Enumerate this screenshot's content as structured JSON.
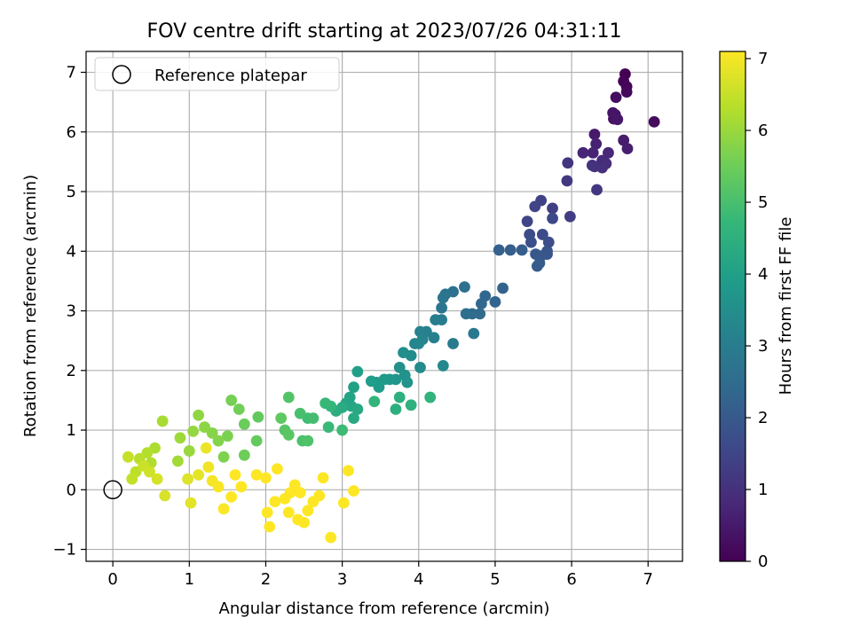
{
  "chart_data": {
    "type": "scatter",
    "title": "FOV centre drift starting at 2023/07/26 04:31:11",
    "xlabel": "Angular distance from reference (arcmin)",
    "ylabel": "Rotation from reference (arcmin)",
    "xlim": [
      -0.35,
      7.45
    ],
    "ylim": [
      -1.2,
      7.35
    ],
    "x_ticks": [
      "0",
      "1",
      "2",
      "3",
      "4",
      "5",
      "6",
      "7"
    ],
    "y_ticks": [
      "−1",
      "0",
      "1",
      "2",
      "3",
      "4",
      "5",
      "6",
      "7"
    ],
    "grid": true,
    "legend": {
      "placement": "top-left",
      "entries": [
        "Reference platepar"
      ]
    },
    "reference_point": {
      "x": 0,
      "y": 0,
      "marker": "open-circle"
    },
    "colorbar": {
      "label": "Hours from first FF file",
      "colormap": "viridis",
      "range": [
        0,
        7.1
      ],
      "ticks": [
        "0",
        "1",
        "2",
        "3",
        "4",
        "5",
        "6",
        "7"
      ]
    },
    "colormap_stops": [
      "#440154",
      "#482878",
      "#3e4989",
      "#31688e",
      "#26828e",
      "#1f9e89",
      "#35b779",
      "#6ece58",
      "#b5de2b",
      "#fde725"
    ],
    "series": [
      {
        "points": [
          [
            6.7,
            6.97,
            0.0
          ],
          [
            6.68,
            6.85,
            0.05
          ],
          [
            6.72,
            6.76,
            0.1
          ],
          [
            6.72,
            6.67,
            0.15
          ],
          [
            7.08,
            6.17,
            0.2
          ],
          [
            6.58,
            6.58,
            0.25
          ],
          [
            6.57,
            6.29,
            0.3
          ],
          [
            6.55,
            6.22,
            0.35
          ],
          [
            6.54,
            6.32,
            0.4
          ],
          [
            6.6,
            6.21,
            0.45
          ],
          [
            6.3,
            5.96,
            0.5
          ],
          [
            6.68,
            5.86,
            0.55
          ],
          [
            6.73,
            5.72,
            0.6
          ],
          [
            6.32,
            5.8,
            0.65
          ],
          [
            6.28,
            5.65,
            0.7
          ],
          [
            6.15,
            5.65,
            0.75
          ],
          [
            6.48,
            5.65,
            0.8
          ],
          [
            6.4,
            5.52,
            0.85
          ],
          [
            6.45,
            5.47,
            0.9
          ],
          [
            6.4,
            5.4,
            0.95
          ],
          [
            6.3,
            5.42,
            1.0
          ],
          [
            6.27,
            5.44,
            1.05
          ],
          [
            5.95,
            5.48,
            1.1
          ],
          [
            6.33,
            5.03,
            1.15
          ],
          [
            5.94,
            5.18,
            1.2
          ],
          [
            5.98,
            4.58,
            1.3
          ],
          [
            5.75,
            4.72,
            1.35
          ],
          [
            5.6,
            4.85,
            1.4
          ],
          [
            5.52,
            4.75,
            1.45
          ],
          [
            5.42,
            4.5,
            1.5
          ],
          [
            5.75,
            4.55,
            1.55
          ],
          [
            5.62,
            4.28,
            1.6
          ],
          [
            5.45,
            4.28,
            1.65
          ],
          [
            5.7,
            4.15,
            1.7
          ],
          [
            5.47,
            4.15,
            1.75
          ],
          [
            5.68,
            4.0,
            1.8
          ],
          [
            5.68,
            3.95,
            1.85
          ],
          [
            5.6,
            3.92,
            1.9
          ],
          [
            5.53,
            3.95,
            1.95
          ],
          [
            5.58,
            3.8,
            2.0
          ],
          [
            5.55,
            3.75,
            2.05
          ],
          [
            5.35,
            4.02,
            2.1
          ],
          [
            5.2,
            4.02,
            2.15
          ],
          [
            5.05,
            4.02,
            2.2
          ],
          [
            5.1,
            3.38,
            2.25
          ],
          [
            5.0,
            3.15,
            2.3
          ],
          [
            4.87,
            3.25,
            2.35
          ],
          [
            4.82,
            3.12,
            2.4
          ],
          [
            4.8,
            2.95,
            2.45
          ],
          [
            4.7,
            2.95,
            2.5
          ],
          [
            4.62,
            2.95,
            2.55
          ],
          [
            4.6,
            3.4,
            2.6
          ],
          [
            4.45,
            3.32,
            2.65
          ],
          [
            4.35,
            3.28,
            2.7
          ],
          [
            4.32,
            3.22,
            2.75
          ],
          [
            4.3,
            3.05,
            2.8
          ],
          [
            4.72,
            2.62,
            2.85
          ],
          [
            4.45,
            2.45,
            2.9
          ],
          [
            4.3,
            2.85,
            2.95
          ],
          [
            4.22,
            2.85,
            3.0
          ],
          [
            4.2,
            2.55,
            3.05
          ],
          [
            4.1,
            2.65,
            3.1
          ],
          [
            4.02,
            2.65,
            3.15
          ],
          [
            4.05,
            2.52,
            3.2
          ],
          [
            3.95,
            2.45,
            3.25
          ],
          [
            4.0,
            2.45,
            3.3
          ],
          [
            4.32,
            2.08,
            3.35
          ],
          [
            4.02,
            2.05,
            3.4
          ],
          [
            3.9,
            2.25,
            3.45
          ],
          [
            3.8,
            2.3,
            3.5
          ],
          [
            3.75,
            2.05,
            3.55
          ],
          [
            3.82,
            1.92,
            3.6
          ],
          [
            3.85,
            1.8,
            3.65
          ],
          [
            3.7,
            1.85,
            3.7
          ],
          [
            3.62,
            1.85,
            3.75
          ],
          [
            3.55,
            1.85,
            3.8
          ],
          [
            3.45,
            1.8,
            3.85
          ],
          [
            3.48,
            1.72,
            3.9
          ],
          [
            3.38,
            1.82,
            3.95
          ],
          [
            3.2,
            1.98,
            4.0
          ],
          [
            3.15,
            1.72,
            4.05
          ],
          [
            3.1,
            1.55,
            4.1
          ],
          [
            3.05,
            1.45,
            4.15
          ],
          [
            3.12,
            1.4,
            4.2
          ],
          [
            3.2,
            1.35,
            4.25
          ],
          [
            3.15,
            1.2,
            4.3
          ],
          [
            3.0,
            1.38,
            4.35
          ],
          [
            2.92,
            1.32,
            4.4
          ],
          [
            3.7,
            1.35,
            4.45
          ],
          [
            3.75,
            1.55,
            4.5
          ],
          [
            3.9,
            1.42,
            4.55
          ],
          [
            4.15,
            1.55,
            4.6
          ],
          [
            3.42,
            1.48,
            4.65
          ],
          [
            2.85,
            1.4,
            4.7
          ],
          [
            2.78,
            1.45,
            4.75
          ],
          [
            2.82,
            1.05,
            4.8
          ],
          [
            3.0,
            1.0,
            4.85
          ],
          [
            2.55,
            1.2,
            4.9
          ],
          [
            2.62,
            1.2,
            4.95
          ],
          [
            2.45,
            1.28,
            5.0
          ],
          [
            2.48,
            0.82,
            5.05
          ],
          [
            2.55,
            0.82,
            5.1
          ],
          [
            2.3,
            1.55,
            5.15
          ],
          [
            2.25,
            1.0,
            5.2
          ],
          [
            2.3,
            0.92,
            5.25
          ],
          [
            2.2,
            1.2,
            5.3
          ],
          [
            1.9,
            1.22,
            5.35
          ],
          [
            1.88,
            0.82,
            5.4
          ],
          [
            1.72,
            1.1,
            5.45
          ],
          [
            1.72,
            0.58,
            5.5
          ],
          [
            1.65,
            1.35,
            5.55
          ],
          [
            1.55,
            1.5,
            5.6
          ],
          [
            1.5,
            0.9,
            5.65
          ],
          [
            1.45,
            0.55,
            5.7
          ],
          [
            1.38,
            0.82,
            5.75
          ],
          [
            1.3,
            0.95,
            5.8
          ],
          [
            1.2,
            1.05,
            5.85
          ],
          [
            1.12,
            1.25,
            5.9
          ],
          [
            1.05,
            0.98,
            5.95
          ],
          [
            1.0,
            0.65,
            6.0
          ],
          [
            0.88,
            0.87,
            6.05
          ],
          [
            0.85,
            0.48,
            6.1
          ],
          [
            0.65,
            1.15,
            6.15
          ],
          [
            0.55,
            0.7,
            6.2
          ],
          [
            0.5,
            0.45,
            6.25
          ],
          [
            0.45,
            0.62,
            6.3
          ],
          [
            0.35,
            0.52,
            6.35
          ],
          [
            0.3,
            0.3,
            6.4
          ],
          [
            0.25,
            0.18,
            6.45
          ],
          [
            0.2,
            0.55,
            6.5
          ],
          [
            0.4,
            0.4,
            6.55
          ],
          [
            0.48,
            0.3,
            6.6
          ],
          [
            0.58,
            0.18,
            6.65
          ],
          [
            0.68,
            -0.1,
            6.7
          ],
          [
            0.98,
            0.18,
            6.75
          ],
          [
            1.02,
            -0.22,
            6.8
          ],
          [
            1.12,
            0.25,
            6.85
          ],
          [
            1.22,
            0.7,
            6.9
          ],
          [
            1.25,
            0.38,
            6.95
          ],
          [
            1.3,
            0.15,
            7.0
          ],
          [
            1.38,
            0.05,
            7.05
          ],
          [
            1.45,
            -0.32,
            7.08
          ],
          [
            1.55,
            -0.12,
            7.1
          ],
          [
            1.68,
            0.05,
            7.1
          ],
          [
            1.6,
            0.25,
            7.1
          ],
          [
            1.88,
            0.25,
            7.1
          ],
          [
            2.0,
            0.2,
            7.1
          ],
          [
            2.02,
            -0.38,
            7.1
          ],
          [
            2.05,
            -0.62,
            7.1
          ],
          [
            2.12,
            -0.2,
            7.1
          ],
          [
            2.15,
            0.35,
            7.1
          ],
          [
            2.25,
            -0.15,
            7.1
          ],
          [
            2.32,
            -0.05,
            7.1
          ],
          [
            2.38,
            0.08,
            7.1
          ],
          [
            2.45,
            -0.05,
            7.1
          ],
          [
            2.3,
            -0.38,
            7.1
          ],
          [
            2.42,
            -0.5,
            7.1
          ],
          [
            2.5,
            -0.55,
            7.1
          ],
          [
            2.55,
            -0.35,
            7.1
          ],
          [
            2.62,
            -0.2,
            7.1
          ],
          [
            2.7,
            -0.1,
            7.1
          ],
          [
            2.85,
            -0.8,
            7.1
          ],
          [
            2.75,
            0.2,
            7.1
          ],
          [
            3.02,
            -0.22,
            7.1
          ],
          [
            3.08,
            0.32,
            7.1
          ],
          [
            3.15,
            -0.02,
            7.1
          ]
        ]
      }
    ]
  }
}
